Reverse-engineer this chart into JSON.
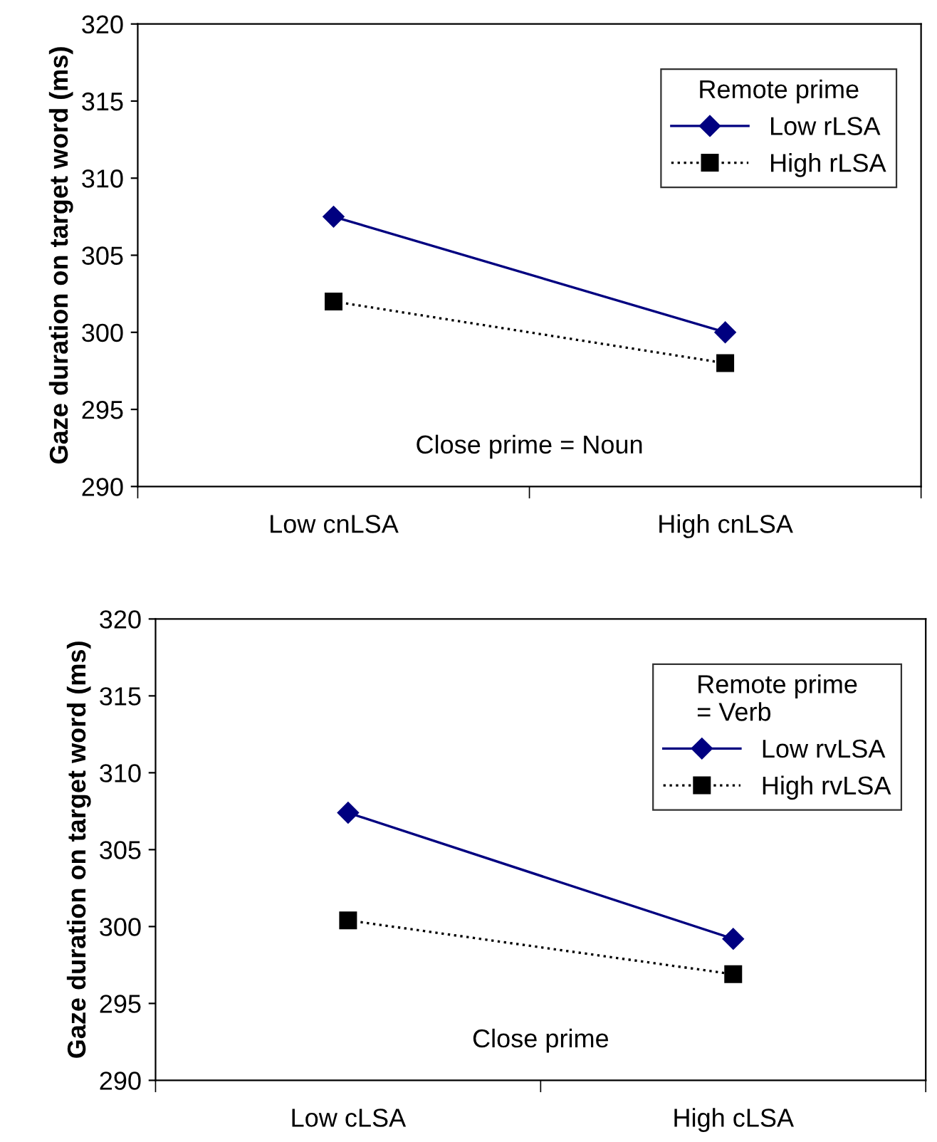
{
  "chart_data": [
    {
      "type": "line",
      "ylabel": "Gaze duration on target word (ms)",
      "categories": [
        "Low cnLSA",
        "High cnLSA"
      ],
      "ylim": [
        290,
        320
      ],
      "yticks": [
        290,
        295,
        300,
        305,
        310,
        315,
        320
      ],
      "legend": "top right",
      "legend_title": "Remote prime",
      "annotations": [
        "Close prime = Noun"
      ],
      "series": [
        {
          "name": "Low rLSA",
          "color": "#000080",
          "marker": "diamond",
          "line_style": "solid",
          "values": [
            307.5,
            300.0
          ]
        },
        {
          "name": "High rLSA",
          "color": "#000000",
          "marker": "square",
          "line_style": "dotted",
          "values": [
            302.0,
            298.0
          ]
        }
      ]
    },
    {
      "type": "line",
      "ylabel": "Gaze duration on target word (ms)",
      "categories": [
        "Low cLSA",
        "High cLSA"
      ],
      "ylim": [
        290,
        320
      ],
      "yticks": [
        290,
        295,
        300,
        305,
        310,
        315,
        320
      ],
      "legend": "top right",
      "legend_title": "Remote prime\n= Verb",
      "annotations": [
        "Close prime"
      ],
      "series": [
        {
          "name": "Low rvLSA",
          "color": "#000080",
          "marker": "diamond",
          "line_style": "solid",
          "values": [
            307.4,
            299.2
          ]
        },
        {
          "name": "High rvLSA",
          "color": "#000000",
          "marker": "square",
          "line_style": "dotted",
          "values": [
            300.4,
            296.9
          ]
        }
      ]
    }
  ]
}
